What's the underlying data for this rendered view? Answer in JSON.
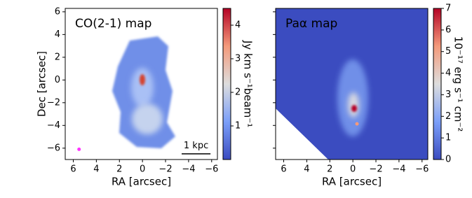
{
  "chart_data": [
    {
      "type": "image",
      "title": "CO(2-1) map",
      "xlabel": "RA [arcsec]",
      "ylabel": "Dec [arcsec]",
      "xlim": [
        6.7,
        -6.5
      ],
      "ylim": [
        -7,
        6.3
      ],
      "xticks": [
        6,
        4,
        2,
        0,
        {
          "value": -2,
          "label": "−2"
        },
        {
          "value": -4,
          "label": "−4"
        },
        {
          "value": -6,
          "label": "−6"
        }
      ],
      "yticks": [
        {
          "value": -6,
          "label": "−6"
        },
        {
          "value": -4,
          "label": "−4"
        },
        {
          "value": -2,
          "label": "−2"
        },
        0,
        2,
        4,
        6
      ],
      "ytick_labels": true,
      "background": "#ffffff",
      "clim": [
        0,
        4.5
      ],
      "cticks": [
        1,
        2,
        3,
        4
      ],
      "colorbar_label": "Jy km s⁻¹beam⁻¹",
      "annotation": "1 kpc"
    },
    {
      "type": "image",
      "title": "Paα map",
      "xlabel": "RA [arcsec]",
      "xlim": [
        6.7,
        -6.5
      ],
      "ylim": [
        -7,
        6.3
      ],
      "xticks": [
        6,
        4,
        2,
        0,
        {
          "value": -2,
          "label": "−2"
        },
        {
          "value": -4,
          "label": "−4"
        },
        {
          "value": -6,
          "label": "−6"
        }
      ],
      "yticks": [
        -6,
        -4,
        -2,
        0,
        2,
        4,
        6
      ],
      "ytick_labels": false,
      "background": "#3b4cc0",
      "clim": [
        0,
        7
      ],
      "cticks": [
        0,
        1,
        2,
        3,
        4,
        5,
        6,
        7
      ],
      "colorbar_label": "10⁻¹⁷ erg s⁻¹ cm⁻²"
    }
  ]
}
